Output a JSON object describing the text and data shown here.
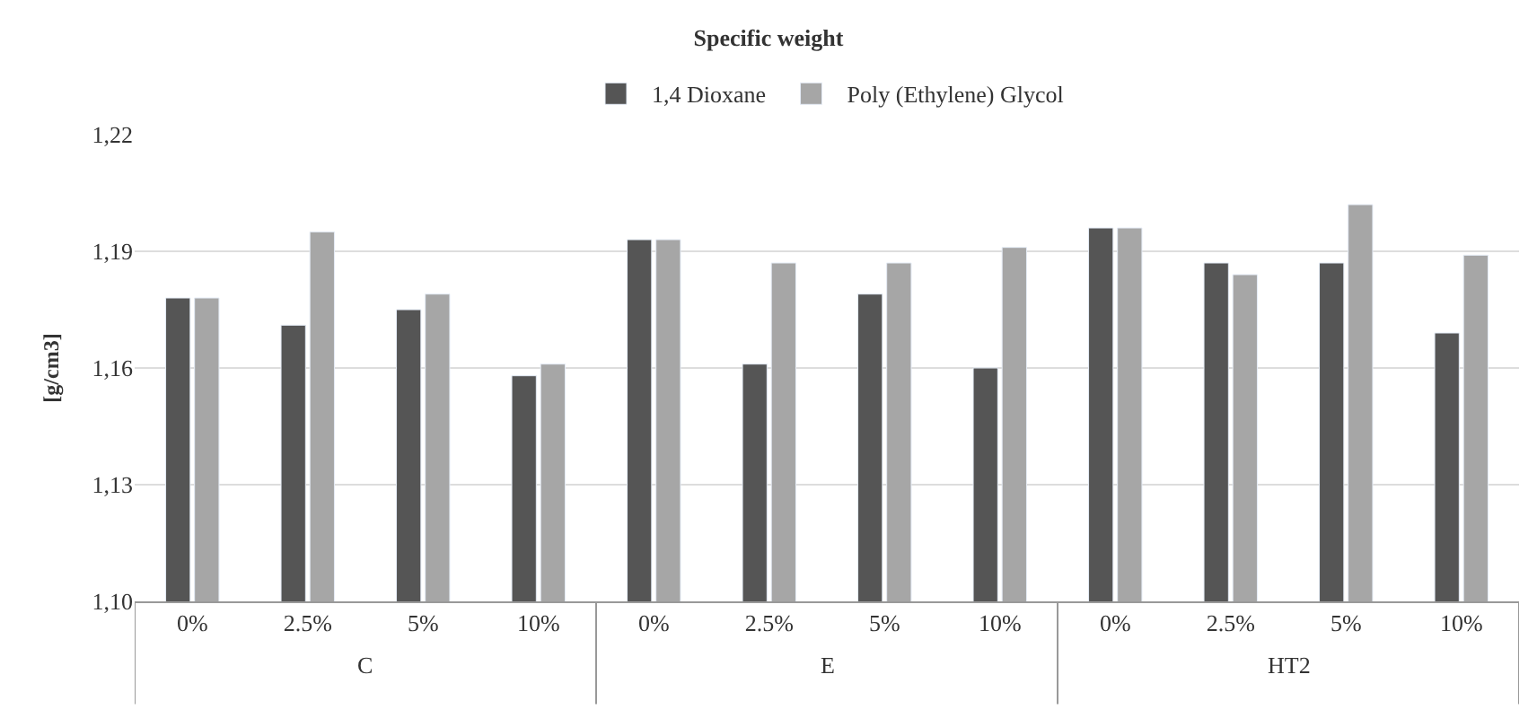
{
  "chart_data": {
    "type": "bar",
    "title": "Specific weight",
    "ylabel": "[g/cm3]",
    "categories": [
      "0%",
      "2.5%",
      "5%",
      "10%",
      "0%",
      "2.5%",
      "5%",
      "10%",
      "0%",
      "2.5%",
      "5%",
      "10%"
    ],
    "series": [
      {
        "name": "1,4 Dioxane",
        "color": "#555555",
        "values": [
          1.178,
          1.171,
          1.175,
          1.158,
          1.193,
          1.161,
          1.179,
          1.16,
          1.196,
          1.187,
          1.187,
          1.169
        ]
      },
      {
        "name": "Poly (Ethylene) Glycol",
        "color": "#a6a6a6",
        "values": [
          1.178,
          1.195,
          1.179,
          1.161,
          1.193,
          1.187,
          1.187,
          1.191,
          1.196,
          1.184,
          1.202,
          1.189
        ]
      }
    ],
    "ylim": [
      1.1,
      1.22
    ],
    "yticks": [
      {
        "value": 1.1,
        "label": "1,10"
      },
      {
        "value": 1.13,
        "label": "1,13"
      },
      {
        "value": 1.16,
        "label": "1,16"
      },
      {
        "value": 1.19,
        "label": "1,19"
      },
      {
        "value": 1.22,
        "label": "1,22"
      }
    ],
    "annotations": [
      "C",
      "E",
      "HT2"
    ],
    "grid": "y",
    "legend": "top"
  }
}
